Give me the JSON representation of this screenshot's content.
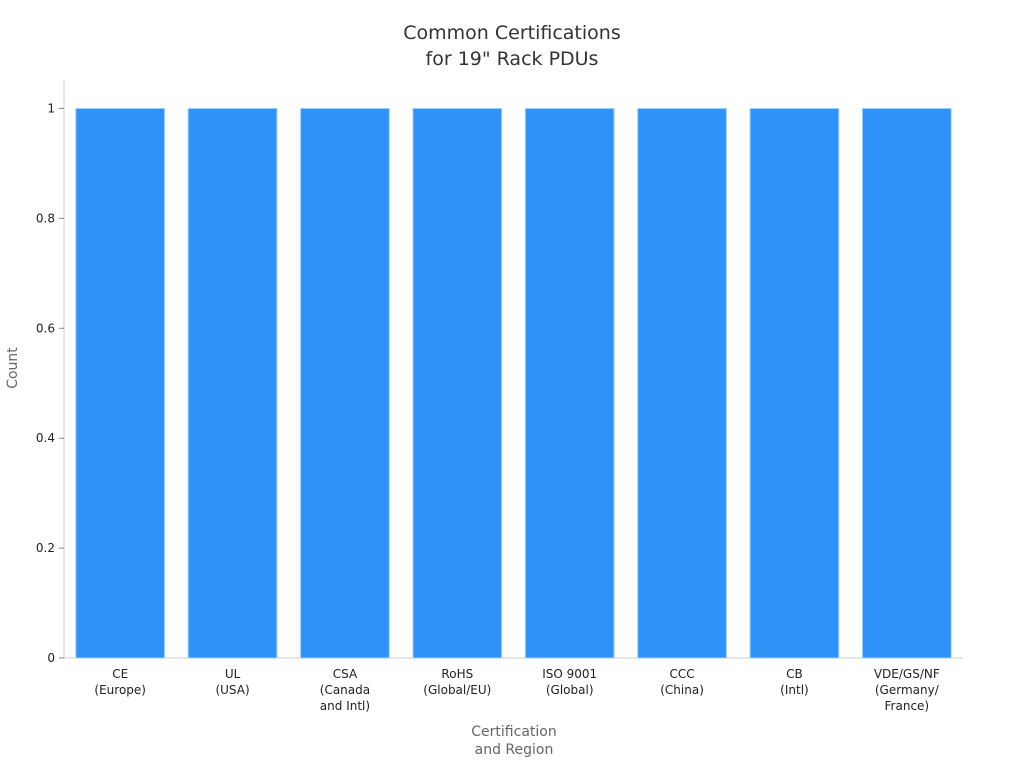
{
  "chart_data": {
    "type": "bar",
    "title": "Common Certifications\nfor 19\" Rack PDUs",
    "x_label": "Certification\nand Region",
    "y_label": "Count",
    "categories": [
      "CE\n(Europe)",
      "UL\n(USA)",
      "CSA\n(Canada\nand Intl)",
      "RoHS\n(Global/EU)",
      "ISO 9001\n(Global)",
      "CCC\n(China)",
      "CB\n(Intl)",
      "VDE/GS/NF\n(Germany/\nFrance)"
    ],
    "values": [
      1,
      1,
      1,
      1,
      1,
      1,
      1,
      1
    ],
    "color": "#2f92f8",
    "ylim": [
      0,
      1.0518
    ],
    "yticks": [
      0,
      0.2,
      0.4,
      0.6,
      0.8,
      1
    ],
    "grid": false
  }
}
